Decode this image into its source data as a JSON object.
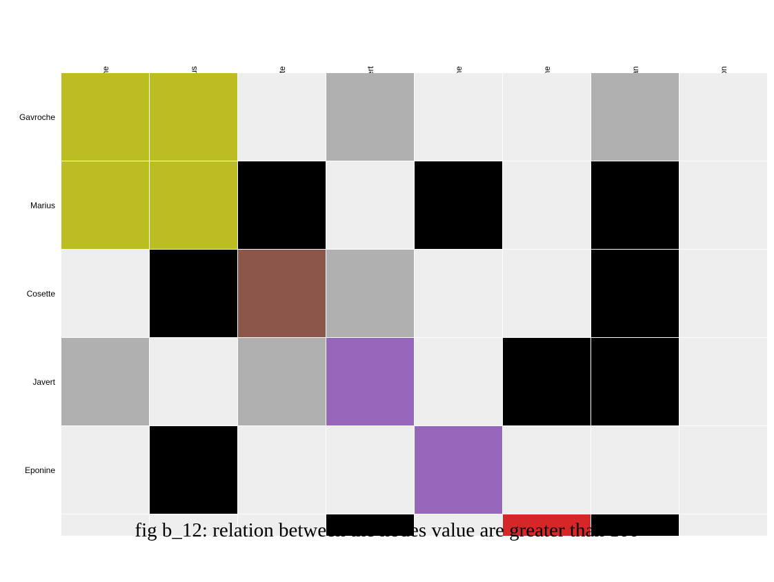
{
  "chart_data": {
    "type": "heatmap",
    "columns": [
      "Gavroche",
      "Marius",
      "Cosette",
      "Javert",
      "Eponine",
      "Fantine",
      "Valjean",
      "Napoleon"
    ],
    "rows": [
      "Gavroche",
      "Marius",
      "Cosette",
      "Javert",
      "Eponine",
      ""
    ],
    "groups": {
      "none": "#eeeeee",
      "between-groups": "#000000",
      "mixed": "#b0b0b0",
      "olive": "#bcbd22",
      "brown": "#8c564b",
      "purple": "#9467bd",
      "red": "#d62728"
    },
    "cells": [
      [
        "olive",
        "olive",
        "none",
        "mixed",
        "none",
        "none",
        "mixed",
        "none"
      ],
      [
        "olive",
        "olive",
        "between-groups",
        "none",
        "between-groups",
        "none",
        "between-groups",
        "none"
      ],
      [
        "none",
        "between-groups",
        "brown",
        "mixed",
        "none",
        "none",
        "between-groups",
        "none"
      ],
      [
        "mixed",
        "none",
        "mixed",
        "purple",
        "none",
        "between-groups",
        "between-groups",
        "none"
      ],
      [
        "none",
        "between-groups",
        "none",
        "none",
        "purple",
        "none",
        "none",
        "none"
      ],
      [
        "none",
        "none",
        "none",
        "between-groups",
        "none",
        "red",
        "between-groups",
        "none"
      ]
    ],
    "legend": "none",
    "grid": false
  },
  "caption": "fig b_12: relation between the nodes value are greater than 100"
}
